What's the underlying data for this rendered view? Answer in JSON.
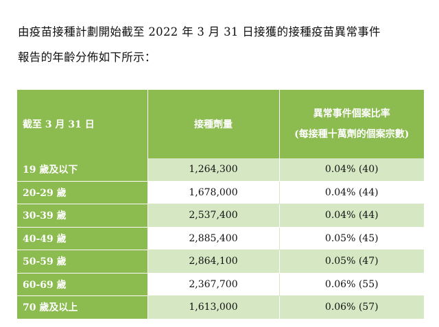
{
  "intro": {
    "line1": "由疫苗接種計劃開始截至 2022 年 3 月 31 日接獲的接種疫苗異常事件",
    "line2": "報告的年齡分佈如下所示："
  },
  "table": {
    "headers": {
      "age": "截至 3 月 31 日",
      "doses": "接種劑量",
      "rate_line1": "異常事件個案比率",
      "rate_line2": "(每接種十萬劑的個案宗數)"
    },
    "rows": [
      {
        "age": "19 歲及以下",
        "doses": "1,264,300",
        "rate": "0.04% (40)"
      },
      {
        "age": "20-29 歲",
        "doses": "1,678,000",
        "rate": "0.04% (44)"
      },
      {
        "age": "30-39 歲",
        "doses": "2,537,400",
        "rate": "0.04% (44)"
      },
      {
        "age": "40-49 歲",
        "doses": "2,885,400",
        "rate": "0.05% (45)"
      },
      {
        "age": "50-59 歲",
        "doses": "2,864,100",
        "rate": "0.05% (47)"
      },
      {
        "age": "60-69 歲",
        "doses": "2,367,700",
        "rate": "0.06% (55)"
      },
      {
        "age": "70 歲及以上",
        "doses": "1,613,000",
        "rate": "0.06% (57)"
      }
    ]
  },
  "colors": {
    "header_green": "#8cbb50",
    "row_shade": "#d6e8c3",
    "text": "#111111"
  }
}
